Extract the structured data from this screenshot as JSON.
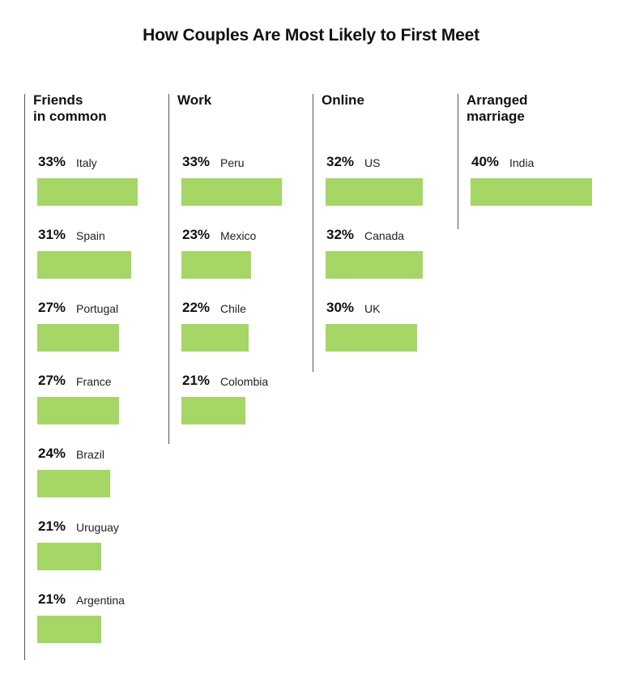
{
  "chart_data": {
    "type": "bar",
    "title": "How Couples Are Most Likely to First Meet",
    "bar_color": "#a5d666",
    "groups": [
      {
        "name": "Friends\nin common",
        "items": [
          {
            "country": "Italy",
            "value": 33,
            "label": "33%"
          },
          {
            "country": "Spain",
            "value": 31,
            "label": "31%"
          },
          {
            "country": "Portugal",
            "value": 27,
            "label": "27%"
          },
          {
            "country": "France",
            "value": 27,
            "label": "27%"
          },
          {
            "country": "Brazil",
            "value": 24,
            "label": "24%"
          },
          {
            "country": "Uruguay",
            "value": 21,
            "label": "21%"
          },
          {
            "country": "Argentina",
            "value": 21,
            "label": "21%"
          }
        ]
      },
      {
        "name": "Work",
        "items": [
          {
            "country": "Peru",
            "value": 33,
            "label": "33%"
          },
          {
            "country": "Mexico",
            "value": 23,
            "label": "23%"
          },
          {
            "country": "Chile",
            "value": 22,
            "label": "22%"
          },
          {
            "country": "Colombia",
            "value": 21,
            "label": "21%"
          }
        ]
      },
      {
        "name": "Online",
        "items": [
          {
            "country": "US",
            "value": 32,
            "label": "32%"
          },
          {
            "country": "Canada",
            "value": 32,
            "label": "32%"
          },
          {
            "country": "UK",
            "value": 30,
            "label": "30%"
          }
        ]
      },
      {
        "name": "Arranged\nmarriage",
        "items": [
          {
            "country": "India",
            "value": 40,
            "label": "40%"
          }
        ]
      }
    ]
  }
}
